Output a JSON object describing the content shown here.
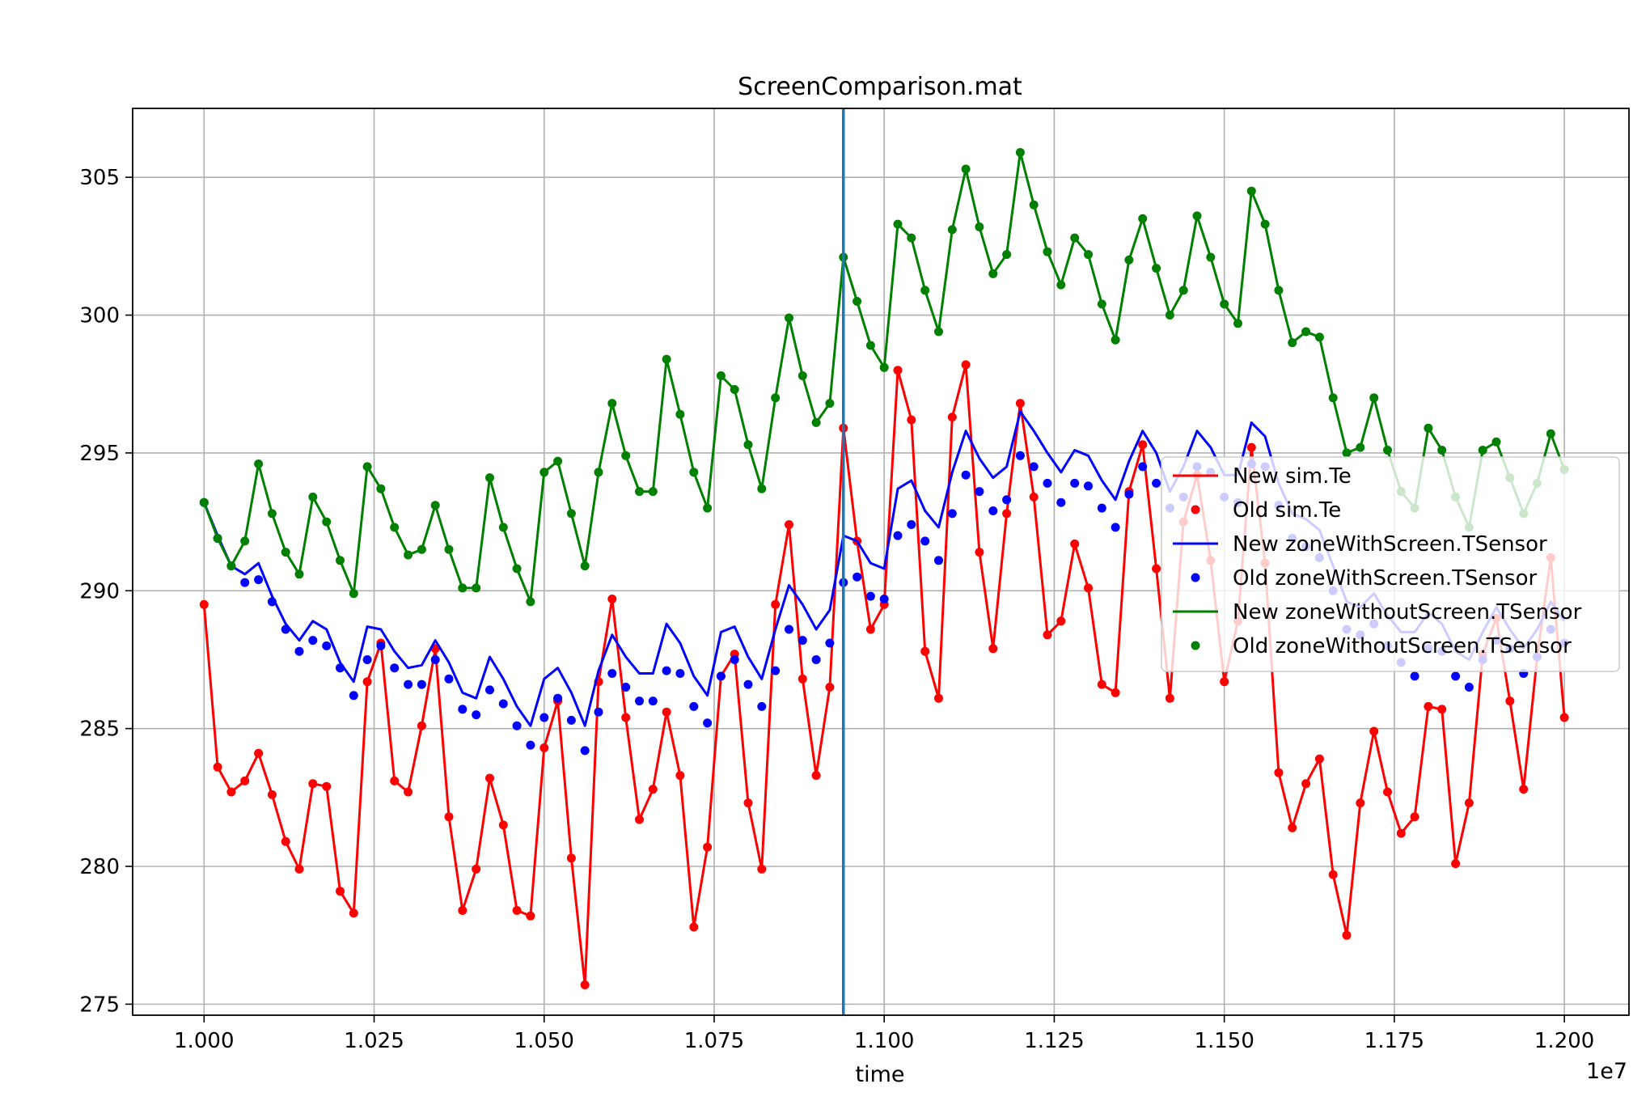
{
  "chart_data": {
    "type": "line",
    "title": "ScreenComparison.mat",
    "xlabel": "time",
    "ylabel": "",
    "x_offset_label": "1e7",
    "xlim": [
      0.9895,
      1.2095
    ],
    "ylim": [
      274.6,
      307.5
    ],
    "x_ticks": [
      1.0,
      1.025,
      1.05,
      1.075,
      1.1,
      1.125,
      1.15,
      1.175,
      1.2
    ],
    "x_tick_labels": [
      "1.000",
      "1.025",
      "1.050",
      "1.075",
      "1.100",
      "1.125",
      "1.150",
      "1.175",
      "1.200"
    ],
    "y_ticks": [
      275,
      280,
      285,
      290,
      295,
      300,
      305
    ],
    "y_tick_labels": [
      "275",
      "280",
      "285",
      "290",
      "295",
      "300",
      "305"
    ],
    "grid": true,
    "vline_x": 1.094,
    "vline_color": "#1f77b4",
    "legend_position": "center-right",
    "x": [
      1.0,
      1.002,
      1.004,
      1.006,
      1.008,
      1.01,
      1.012,
      1.014,
      1.016,
      1.018,
      1.02,
      1.022,
      1.024,
      1.026,
      1.028,
      1.03,
      1.032,
      1.034,
      1.036,
      1.038,
      1.04,
      1.042,
      1.044,
      1.046,
      1.048,
      1.05,
      1.052,
      1.054,
      1.056,
      1.058,
      1.06,
      1.062,
      1.064,
      1.066,
      1.068,
      1.07,
      1.072,
      1.074,
      1.076,
      1.078,
      1.08,
      1.082,
      1.084,
      1.086,
      1.088,
      1.09,
      1.092,
      1.094,
      1.096,
      1.098,
      1.1,
      1.102,
      1.104,
      1.106,
      1.108,
      1.11,
      1.112,
      1.114,
      1.116,
      1.118,
      1.12,
      1.122,
      1.124,
      1.126,
      1.128,
      1.13,
      1.132,
      1.134,
      1.136,
      1.138,
      1.14,
      1.142,
      1.144,
      1.146,
      1.148,
      1.15,
      1.152,
      1.154,
      1.156,
      1.158,
      1.16,
      1.162,
      1.164,
      1.166,
      1.168,
      1.17,
      1.172,
      1.174,
      1.176,
      1.178,
      1.18,
      1.182,
      1.184,
      1.186,
      1.188,
      1.19,
      1.192,
      1.194,
      1.196,
      1.198,
      1.2
    ],
    "series": [
      {
        "name": "New sim.Te",
        "color": "#ff0000",
        "style": "line",
        "values": [
          289.5,
          283.6,
          282.7,
          283.1,
          284.1,
          282.6,
          280.9,
          279.9,
          283.0,
          282.9,
          279.1,
          278.3,
          286.7,
          288.1,
          283.1,
          282.7,
          285.1,
          287.9,
          281.8,
          278.4,
          279.9,
          283.2,
          281.5,
          278.4,
          278.2,
          284.3,
          286.0,
          280.3,
          275.7,
          286.7,
          289.7,
          285.4,
          281.7,
          282.8,
          285.6,
          283.3,
          277.8,
          280.7,
          286.9,
          287.7,
          282.3,
          279.9,
          289.5,
          292.4,
          286.8,
          283.3,
          286.5,
          295.9,
          291.8,
          288.6,
          289.5,
          298.0,
          296.2,
          287.8,
          286.1,
          296.3,
          298.2,
          291.4,
          287.9,
          292.8,
          296.8,
          293.4,
          288.4,
          288.9,
          291.7,
          290.1,
          286.6,
          286.3,
          293.6,
          295.3,
          290.8,
          286.1,
          292.5,
          294.2,
          291.1,
          286.7,
          288.9,
          295.2,
          291.0,
          283.4,
          281.4,
          283.0,
          283.9,
          279.7,
          277.5,
          282.3,
          284.9,
          282.7,
          281.2,
          281.8,
          285.8,
          285.7,
          280.1,
          282.3,
          287.7,
          289.0,
          286.0,
          282.8,
          287.6,
          291.2,
          285.4
        ]
      },
      {
        "name": "Old sim.Te",
        "color": "#ff0000",
        "style": "dots",
        "values": [
          289.5,
          283.6,
          282.7,
          283.1,
          284.1,
          282.6,
          280.9,
          279.9,
          283.0,
          282.9,
          279.1,
          278.3,
          286.7,
          288.1,
          283.1,
          282.7,
          285.1,
          287.9,
          281.8,
          278.4,
          279.9,
          283.2,
          281.5,
          278.4,
          278.2,
          284.3,
          286.0,
          280.3,
          275.7,
          286.7,
          289.7,
          285.4,
          281.7,
          282.8,
          285.6,
          283.3,
          277.8,
          280.7,
          286.9,
          287.7,
          282.3,
          279.9,
          289.5,
          292.4,
          286.8,
          283.3,
          286.5,
          295.9,
          291.8,
          288.6,
          289.5,
          298.0,
          296.2,
          287.8,
          286.1,
          296.3,
          298.2,
          291.4,
          287.9,
          292.8,
          296.8,
          293.4,
          288.4,
          288.9,
          291.7,
          290.1,
          286.6,
          286.3,
          293.6,
          295.3,
          290.8,
          286.1,
          292.5,
          294.2,
          291.1,
          286.7,
          288.9,
          295.2,
          291.0,
          283.4,
          281.4,
          283.0,
          283.9,
          279.7,
          277.5,
          282.3,
          284.9,
          282.7,
          281.2,
          281.8,
          285.8,
          285.7,
          280.1,
          282.3,
          287.7,
          289.0,
          286.0,
          282.8,
          287.6,
          291.2,
          285.4
        ]
      },
      {
        "name": "New zoneWithScreen.TSensor",
        "color": "#0000ff",
        "style": "line",
        "values": [
          293.2,
          292.0,
          290.9,
          290.6,
          291.0,
          289.8,
          288.8,
          288.2,
          288.9,
          288.6,
          287.4,
          286.7,
          288.7,
          288.6,
          287.8,
          287.2,
          287.3,
          288.2,
          287.4,
          286.3,
          286.1,
          287.6,
          286.8,
          285.8,
          285.1,
          286.8,
          287.2,
          286.3,
          285.1,
          287.1,
          288.4,
          287.6,
          287.0,
          287.0,
          288.8,
          288.1,
          286.9,
          286.2,
          288.5,
          288.7,
          287.6,
          286.8,
          288.6,
          290.2,
          289.5,
          288.6,
          289.3,
          292.0,
          291.8,
          291.0,
          290.8,
          293.7,
          294.0,
          292.9,
          292.3,
          294.3,
          295.8,
          294.8,
          294.1,
          294.5,
          296.5,
          295.8,
          295.0,
          294.3,
          295.1,
          294.9,
          294.0,
          293.3,
          294.7,
          295.8,
          295.0,
          293.6,
          294.5,
          295.8,
          295.2,
          294.2,
          294.2,
          296.1,
          295.6,
          293.9,
          292.8,
          292.6,
          292.2,
          290.9,
          289.6,
          289.4,
          289.9,
          289.1,
          288.5,
          288.5,
          289.2,
          288.8,
          287.8,
          287.5,
          288.5,
          289.4,
          288.6,
          287.9,
          288.6,
          289.6,
          288.9
        ]
      },
      {
        "name": "Old zoneWithScreen.TSensor",
        "color": "#0000ff",
        "style": "dots",
        "values": [
          293.2,
          291.9,
          290.9,
          290.3,
          290.4,
          289.6,
          288.6,
          287.8,
          288.2,
          288.0,
          287.2,
          286.2,
          287.5,
          288.0,
          287.2,
          286.6,
          286.6,
          287.5,
          286.8,
          285.7,
          285.5,
          286.4,
          285.9,
          285.1,
          284.4,
          285.4,
          286.1,
          285.3,
          284.2,
          285.6,
          287.0,
          286.5,
          286.0,
          286.0,
          287.1,
          287.0,
          285.8,
          285.2,
          286.9,
          287.5,
          286.6,
          285.8,
          287.1,
          288.6,
          288.2,
          287.5,
          288.1,
          290.3,
          290.5,
          289.8,
          289.7,
          292.0,
          292.4,
          291.8,
          291.1,
          292.8,
          294.2,
          293.6,
          292.9,
          293.3,
          294.9,
          294.5,
          293.9,
          293.2,
          293.9,
          293.8,
          293.0,
          292.3,
          293.5,
          294.5,
          293.9,
          293.0,
          293.4,
          294.5,
          294.3,
          293.4,
          293.2,
          294.6,
          294.5,
          293.1,
          291.9,
          291.6,
          291.2,
          290.0,
          288.6,
          288.4,
          288.8,
          288.0,
          287.4,
          286.9,
          287.9,
          287.8,
          286.9,
          286.5,
          287.5,
          288.2,
          287.9,
          287.0,
          287.6,
          288.6,
          288.1
        ]
      },
      {
        "name": "New zoneWithoutScreen.TSensor",
        "color": "#008000",
        "style": "line",
        "values": [
          293.2,
          291.9,
          290.9,
          291.8,
          294.6,
          292.8,
          291.4,
          290.6,
          293.4,
          292.5,
          291.1,
          289.9,
          294.5,
          293.7,
          292.3,
          291.3,
          291.5,
          293.1,
          291.5,
          290.1,
          290.1,
          294.1,
          292.3,
          290.8,
          289.6,
          294.3,
          294.7,
          292.8,
          290.9,
          294.3,
          296.8,
          294.9,
          293.6,
          293.6,
          298.4,
          296.4,
          294.3,
          293.0,
          297.8,
          297.3,
          295.3,
          293.7,
          297.0,
          299.9,
          297.8,
          296.1,
          296.8,
          302.1,
          300.5,
          298.9,
          298.1,
          303.3,
          302.8,
          300.9,
          299.4,
          303.1,
          305.3,
          303.2,
          301.5,
          302.2,
          305.9,
          304.0,
          302.3,
          301.1,
          302.8,
          302.2,
          300.4,
          299.1,
          302.0,
          303.5,
          301.7,
          300.0,
          300.9,
          303.6,
          302.1,
          300.4,
          299.7,
          304.5,
          303.3,
          300.9,
          299.0,
          299.4,
          299.2,
          297.0,
          295.0,
          295.2,
          297.0,
          295.1,
          293.6,
          293.0,
          295.9,
          295.1,
          293.4,
          292.3,
          295.1,
          295.4,
          294.1,
          292.8,
          293.9,
          295.7,
          294.4
        ]
      },
      {
        "name": "Old zoneWithoutScreen.TSensor",
        "color": "#008000",
        "style": "dots",
        "values": [
          293.2,
          291.9,
          290.9,
          291.8,
          294.6,
          292.8,
          291.4,
          290.6,
          293.4,
          292.5,
          291.1,
          289.9,
          294.5,
          293.7,
          292.3,
          291.3,
          291.5,
          293.1,
          291.5,
          290.1,
          290.1,
          294.1,
          292.3,
          290.8,
          289.6,
          294.3,
          294.7,
          292.8,
          290.9,
          294.3,
          296.8,
          294.9,
          293.6,
          293.6,
          298.4,
          296.4,
          294.3,
          293.0,
          297.8,
          297.3,
          295.3,
          293.7,
          297.0,
          299.9,
          297.8,
          296.1,
          296.8,
          302.1,
          300.5,
          298.9,
          298.1,
          303.3,
          302.8,
          300.9,
          299.4,
          303.1,
          305.3,
          303.2,
          301.5,
          302.2,
          305.9,
          304.0,
          302.3,
          301.1,
          302.8,
          302.2,
          300.4,
          299.1,
          302.0,
          303.5,
          301.7,
          300.0,
          300.9,
          303.6,
          302.1,
          300.4,
          299.7,
          304.5,
          303.3,
          300.9,
          299.0,
          299.4,
          299.2,
          297.0,
          295.0,
          295.2,
          297.0,
          295.1,
          293.6,
          293.0,
          295.9,
          295.1,
          293.4,
          292.3,
          295.1,
          295.4,
          294.1,
          292.8,
          293.9,
          295.7,
          294.4
        ]
      }
    ]
  }
}
